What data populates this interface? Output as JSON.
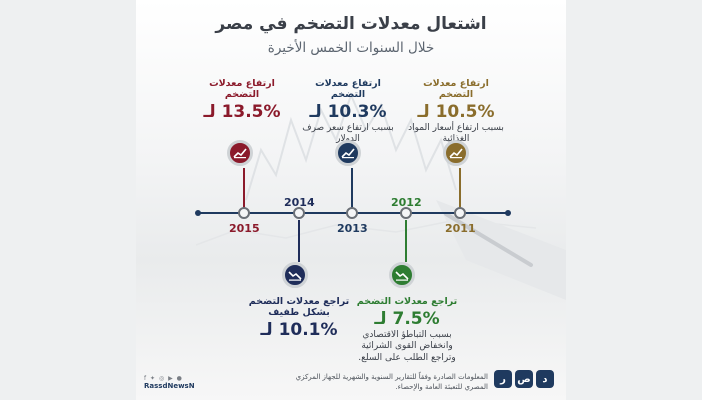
{
  "title": "اشتعال معدلات التضخم في مصر",
  "subtitle": "خلال السنوات الخمس الأخيرة",
  "colors": {
    "y2015": "#8b1a2b",
    "y2014": "#1f2d5a",
    "y2013": "#1f3a5f",
    "y2012": "#2e7d32",
    "y2011": "#8a6d2c",
    "axis": "#1f3a5f"
  },
  "events": {
    "e2015": {
      "title": "ارتفاع معدلات التضخم",
      "value": "13.5% لـ",
      "desc": ""
    },
    "e2013": {
      "title": "ارتفاع معدلات التضخم",
      "value": "10.3% لـ",
      "desc": "بسبب ارتفاع سعر صرف الدولار"
    },
    "e2011": {
      "title": "ارتفاع معدلات التضخم",
      "value": "10.5% لـ",
      "desc": "بسبب ارتفاع أسعار المواد الغذائية"
    },
    "e2014": {
      "title": "تراجع معدلات التضخم بشكل طفيف",
      "value": "10.1% لـ",
      "desc": ""
    },
    "e2012": {
      "title": "تراجع معدلات التضخم",
      "value": "7.5% لـ",
      "desc": "بسبب التباطؤ الاقتصادي وانخفاض القوى الشرائية وتراجع الطلب على السلع."
    }
  },
  "years": {
    "y2015": "2015",
    "y2014": "2014",
    "y2013": "2013",
    "y2012": "2012",
    "y2011": "2011"
  },
  "chart_data": {
    "type": "timeline",
    "title": "اشتعال معدلات التضخم في مصر",
    "subtitle": "خلال السنوات الخمس الأخيرة",
    "points": [
      {
        "year": 2011,
        "inflation_pct": 10.5,
        "trend": "up"
      },
      {
        "year": 2012,
        "inflation_pct": 7.5,
        "trend": "down"
      },
      {
        "year": 2013,
        "inflation_pct": 10.3,
        "trend": "up"
      },
      {
        "year": 2014,
        "inflation_pct": 10.1,
        "trend": "down"
      },
      {
        "year": 2015,
        "inflation_pct": 13.5,
        "trend": "up"
      }
    ]
  },
  "footer": {
    "source": "المعلومات الصادرة وفقاً للتقارير السنوية والشهرية للجهاز المركزي المصري للتعبئة العامة والإحصاء.",
    "social": "f ✦ ◎ ▶ ●",
    "handle": "RassdNewsN",
    "logo": [
      "ر",
      "ص",
      "د"
    ]
  }
}
